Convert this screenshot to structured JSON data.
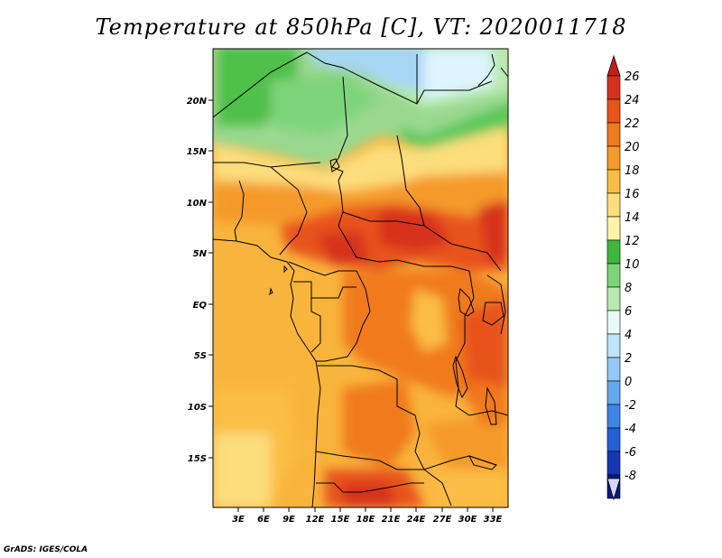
{
  "title": "Temperature at 850hPa [C], VT: 2020011718",
  "footer": "GrADS: IGES/COLA",
  "map": {
    "lat_labels": [
      "20N",
      "15N",
      "10N",
      "5N",
      "EQ",
      "5S",
      "10S",
      "15S"
    ],
    "lon_labels": [
      "3E",
      "6E",
      "9E",
      "12E",
      "15E",
      "18E",
      "21E",
      "24E",
      "27E",
      "30E",
      "33E"
    ]
  },
  "colorbar": {
    "labels": [
      "26",
      "24",
      "22",
      "20",
      "18",
      "16",
      "14",
      "12",
      "10",
      "8",
      "6",
      "4",
      "2",
      "0",
      "-2",
      "-4",
      "-6",
      "-8"
    ],
    "colors": [
      "#d7301f",
      "#e8531a",
      "#f07a1e",
      "#f59a2a",
      "#fbbd45",
      "#fddd7d",
      "#fff4a8",
      "#3fb63f",
      "#7ed47a",
      "#b7eab0",
      "#e8fbf6",
      "#bfe5f9",
      "#93c7f5",
      "#64a8ef",
      "#3d86e5",
      "#245fd8",
      "#1537b5",
      "#0a1a7a"
    ],
    "top_triangle_color": "#c41f15",
    "bottom_triangle_color": "#dad5f5"
  }
}
